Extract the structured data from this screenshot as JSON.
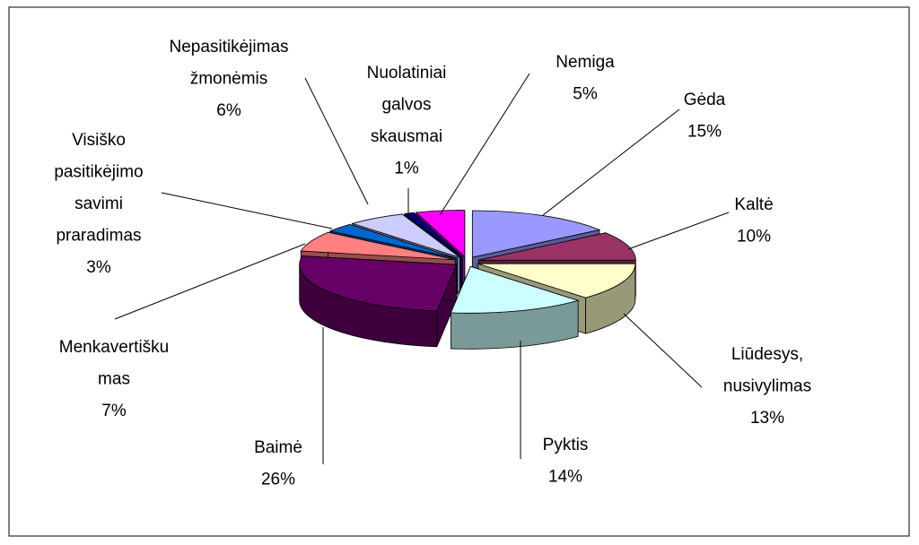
{
  "chart_data": {
    "type": "pie",
    "categories": [
      "Gėda",
      "Kaltė",
      "Liūdesys, nusivylimas",
      "Pyktis",
      "Baimė",
      "Menkavertiškumas",
      "Visiško pasitikėjimo savimi praradimas",
      "Nepasitikėjimas žmonėmis",
      "Nuolatiniai galvos skausmai",
      "Nemiga"
    ],
    "values": [
      15,
      10,
      13,
      14,
      26,
      7,
      3,
      6,
      1,
      5
    ],
    "value_labels": [
      "15%",
      "10%",
      "13%",
      "14%",
      "26%",
      "7%",
      "3%",
      "6%",
      "1%",
      "5%"
    ],
    "colors": [
      "#9999ff",
      "#993366",
      "#ffffcc",
      "#ccffff",
      "#660066",
      "#ff8080",
      "#0066cc",
      "#ccccff",
      "#000080",
      "#ff00ff"
    ]
  }
}
